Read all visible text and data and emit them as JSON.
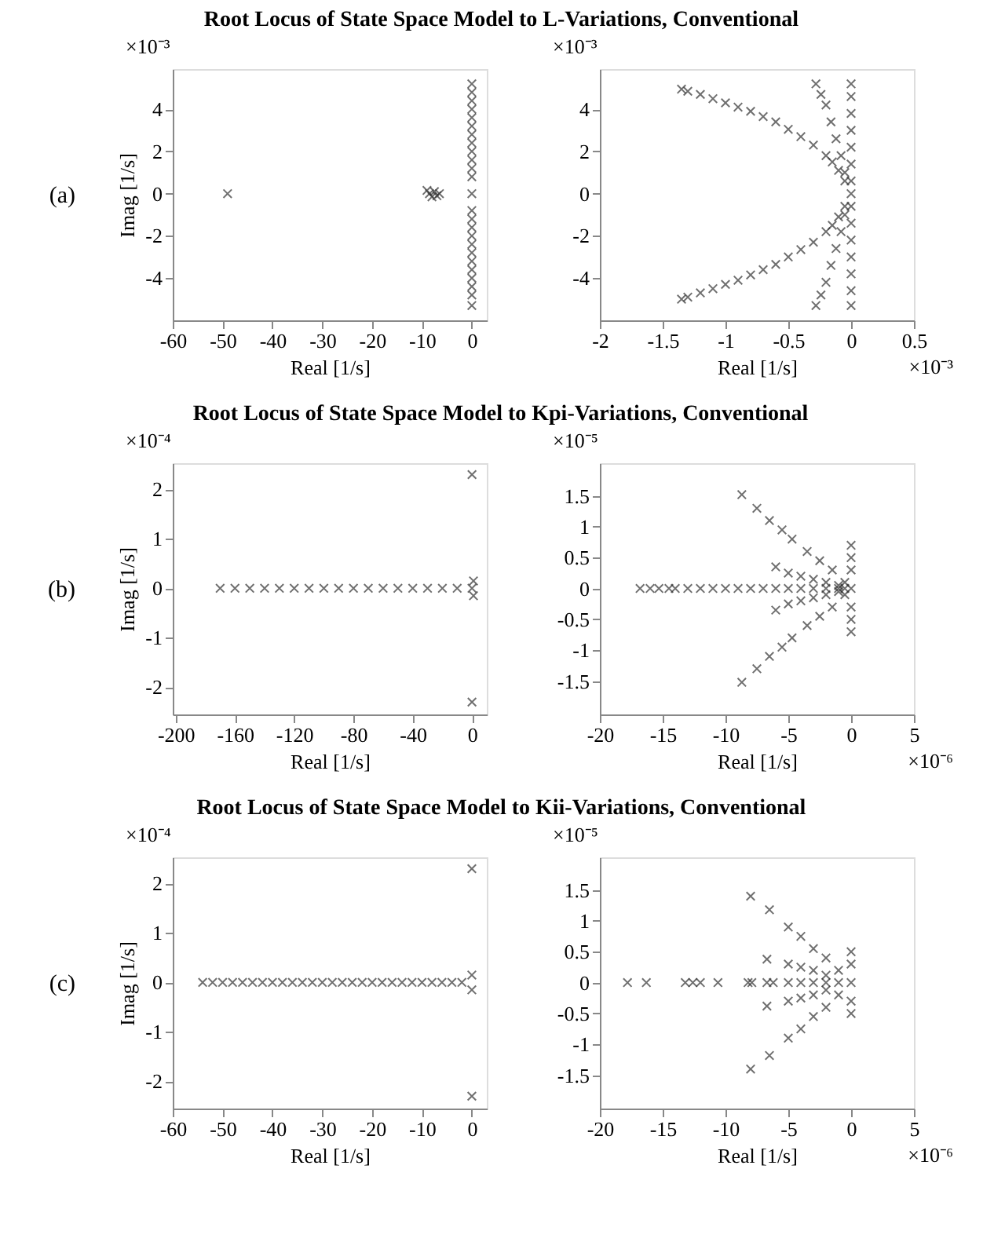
{
  "chart_data": [
    {
      "type": "scatter",
      "title": "Root Locus of State Space Model to L-Variations, Conventional",
      "xlabel": "Real [1/s]",
      "ylabel": "Imag [1/s]",
      "color": "#333333",
      "marker": "cross",
      "x": [
        -49,
        -9,
        -8.5,
        -8,
        -7.5,
        -7,
        -6.5,
        0,
        0,
        0,
        0,
        0,
        0,
        0,
        0,
        0,
        0,
        0,
        0,
        0,
        0,
        0,
        0,
        0,
        0,
        0,
        0,
        0,
        0,
        0,
        0,
        0
      ],
      "values": [
        0,
        0.15,
        0,
        -0.15,
        0.1,
        -0.1,
        0,
        5.2,
        4.8,
        4.4,
        4.0,
        3.6,
        3.2,
        2.8,
        2.4,
        2.0,
        1.6,
        1.2,
        0.8,
        0,
        -0.8,
        -1.2,
        -1.6,
        -2.0,
        -2.4,
        -2.8,
        -3.2,
        -3.6,
        -4.0,
        -4.4,
        -4.8,
        -5.3
      ],
      "xlim": [
        -60,
        3
      ],
      "ylim": [
        -6,
        5.9
      ],
      "xticks": [
        -60,
        -50,
        -40,
        -30,
        -20,
        -10,
        0
      ],
      "yticks": [
        -4,
        -2,
        0,
        2,
        4
      ],
      "annotations": [
        "×10⁻³",
        "(a)"
      ]
    },
    {
      "type": "scatter",
      "xlabel": "Real [1/s]",
      "color": "#333333",
      "marker": "cross",
      "x": [
        0,
        -0.05,
        -0.1,
        -0.15,
        -0.2,
        -0.3,
        -0.4,
        -0.5,
        -0.6,
        -0.7,
        -0.8,
        -0.9,
        -1.0,
        -1.1,
        -1.2,
        -1.3,
        -1.35,
        -0.05,
        -0.08,
        -0.12,
        -0.16,
        -0.2,
        -0.24,
        -0.28,
        0,
        0,
        0,
        0,
        0,
        0,
        0,
        -0.05,
        -0.1,
        -0.15,
        -0.2,
        -0.3,
        -0.4,
        -0.5,
        -0.6,
        -0.7,
        -0.8,
        -0.9,
        -1.0,
        -1.1,
        -1.2,
        -1.3,
        -1.35,
        -0.05,
        -0.08,
        -0.12,
        -0.16,
        -0.2,
        -0.24,
        -0.28,
        0,
        0,
        0,
        0,
        0,
        0,
        0
      ],
      "values": [
        0,
        0.6,
        1.1,
        1.5,
        1.8,
        2.3,
        2.7,
        3.05,
        3.4,
        3.65,
        3.9,
        4.1,
        4.3,
        4.5,
        4.7,
        4.85,
        4.95,
        1.0,
        1.8,
        2.6,
        3.4,
        4.2,
        4.7,
        5.2,
        0.6,
        1.4,
        2.2,
        3.0,
        3.8,
        4.6,
        5.2,
        -0.6,
        -1.1,
        -1.5,
        -1.8,
        -2.3,
        -2.65,
        -3.0,
        -3.35,
        -3.6,
        -3.85,
        -4.1,
        -4.3,
        -4.5,
        -4.7,
        -4.9,
        -5.0,
        -1.0,
        -1.8,
        -2.6,
        -3.4,
        -4.2,
        -4.8,
        -5.3,
        -0.6,
        -1.4,
        -2.2,
        -3.0,
        -3.8,
        -4.6,
        -5.3
      ],
      "xlim": [
        -2,
        0.5
      ],
      "ylim": [
        -6,
        5.9
      ],
      "xticks": [
        -2,
        -1.5,
        -1,
        -0.5,
        0,
        0.5
      ],
      "yticks": [
        -4,
        -2,
        0,
        2,
        4
      ],
      "annotations": [
        "×10⁻³",
        "×10⁻³"
      ]
    },
    {
      "type": "scatter",
      "title": "Root Locus of State Space Model to Kpi-Variations, Conventional",
      "xlabel": "Real [1/s]",
      "ylabel": "Imag [1/s]",
      "color": "#333333",
      "marker": "cross",
      "x": [
        -170,
        -160,
        -150,
        -140,
        -130,
        -120,
        -110,
        -100,
        -90,
        -80,
        -70,
        -60,
        -50,
        -40,
        -30,
        -20,
        -10,
        0,
        1,
        1,
        0,
        0
      ],
      "values": [
        0,
        0,
        0,
        0,
        0,
        0,
        0,
        0,
        0,
        0,
        0,
        0,
        0,
        0,
        0,
        0,
        0,
        0,
        0.15,
        -0.15,
        2.3,
        -2.3
      ],
      "xlim": [
        -202,
        10
      ],
      "ylim": [
        -2.55,
        2.53
      ],
      "xticks": [
        -200,
        -160,
        -120,
        -80,
        -40,
        0
      ],
      "yticks": [
        -2,
        -1,
        0,
        1,
        2
      ],
      "annotations": [
        "×10⁻⁴",
        "(b)"
      ]
    },
    {
      "type": "scatter",
      "xlabel": "Real [1/s]",
      "color": "#333333",
      "marker": "cross",
      "x": [
        -16.8,
        -16,
        -15.3,
        -14.5,
        -14,
        -13,
        -12,
        -11,
        -10,
        -9,
        -8,
        -7,
        -6,
        -5,
        -4,
        -3,
        -2,
        -1,
        -0.5,
        0,
        -8.7,
        -7.5,
        -6.5,
        -5.5,
        -4.7,
        -3.5,
        -2.5,
        -1.5,
        -0.5,
        -6,
        -5,
        -4,
        -3,
        -2,
        -1,
        0,
        0,
        0,
        -8.7,
        -7.5,
        -6.5,
        -5.5,
        -4.7,
        -3.5,
        -2.5,
        -1.5,
        -0.5,
        -6,
        -5,
        -4,
        -3,
        -2,
        -1,
        0,
        0,
        0
      ],
      "values": [
        0,
        0,
        0,
        0,
        0,
        0,
        0,
        0,
        0,
        0,
        0,
        0,
        0,
        0,
        0,
        0,
        0,
        0,
        0,
        0,
        1.52,
        1.3,
        1.1,
        0.95,
        0.8,
        0.6,
        0.45,
        0.3,
        0.1,
        0.35,
        0.25,
        0.2,
        0.15,
        0.1,
        0.05,
        0.7,
        0.5,
        0.3,
        -1.52,
        -1.3,
        -1.1,
        -0.95,
        -0.8,
        -0.6,
        -0.45,
        -0.3,
        -0.1,
        -0.35,
        -0.25,
        -0.2,
        -0.15,
        -0.1,
        -0.05,
        -0.7,
        -0.5,
        -0.3
      ],
      "xlim": [
        -20,
        5
      ],
      "ylim": [
        -2.04,
        2.03
      ],
      "xticks": [
        -20,
        -15,
        -10,
        -5,
        0,
        5
      ],
      "yticks": [
        -1.5,
        -1,
        -0.5,
        0,
        0.5,
        1,
        1.5
      ],
      "annotations": [
        "×10⁻⁵",
        "×10⁻⁶"
      ]
    },
    {
      "type": "scatter",
      "title": "Root Locus of State Space Model to Kii-Variations, Conventional",
      "xlabel": "Real [1/s]",
      "ylabel": "Imag [1/s]",
      "color": "#333333",
      "marker": "cross",
      "x": [
        -54,
        -52,
        -50,
        -48,
        -46,
        -44,
        -42,
        -40,
        -38,
        -36,
        -34,
        -32,
        -30,
        -28,
        -26,
        -24,
        -22,
        -20,
        -18,
        -16,
        -14,
        -12,
        -10,
        -8,
        -6,
        -4,
        -2,
        0,
        0,
        0,
        0
      ],
      "values": [
        0,
        0,
        0,
        0,
        0,
        0,
        0,
        0,
        0,
        0,
        0,
        0,
        0,
        0,
        0,
        0,
        0,
        0,
        0,
        0,
        0,
        0,
        0,
        0,
        0,
        0,
        0,
        0.15,
        -0.15,
        2.3,
        -2.3
      ],
      "xlim": [
        -60,
        3
      ],
      "ylim": [
        -2.55,
        2.53
      ],
      "xticks": [
        -60,
        -50,
        -40,
        -30,
        -20,
        -10,
        0
      ],
      "yticks": [
        -2,
        -1,
        0,
        1,
        2
      ],
      "annotations": [
        "×10⁻⁴",
        "(c)"
      ]
    },
    {
      "type": "scatter",
      "xlabel": "Real [1/s]",
      "color": "#333333",
      "marker": "cross",
      "x": [
        -17.8,
        -16.3,
        -13.2,
        -12.6,
        -12,
        -10.6,
        -8.2,
        -7.9,
        -6.7,
        -6.2,
        -5,
        -4,
        -3,
        -2,
        -1,
        0,
        -8,
        -6.5,
        -5,
        -4,
        -3,
        -2,
        -1,
        -6.7,
        -5,
        -4,
        -3,
        -2,
        0,
        0,
        -8,
        -6.5,
        -5,
        -4,
        -3,
        -2,
        -1,
        -6.7,
        -5,
        -4,
        -3,
        -2,
        0,
        0
      ],
      "values": [
        0,
        0,
        0,
        0,
        0,
        0,
        0,
        0,
        0,
        0,
        0,
        0,
        0,
        0,
        0,
        0,
        1.4,
        1.18,
        0.9,
        0.75,
        0.55,
        0.4,
        0.2,
        0.38,
        0.3,
        0.25,
        0.2,
        0.12,
        0.5,
        0.3,
        -1.4,
        -1.18,
        -0.9,
        -0.75,
        -0.55,
        -0.4,
        -0.2,
        -0.38,
        -0.3,
        -0.25,
        -0.2,
        -0.12,
        -0.5,
        -0.3
      ],
      "xlim": [
        -20,
        5
      ],
      "ylim": [
        -2.04,
        2.03
      ],
      "xticks": [
        -20,
        -15,
        -10,
        -5,
        0,
        5
      ],
      "yticks": [
        -1.5,
        -1,
        -0.5,
        0,
        0.5,
        1,
        1.5
      ],
      "annotations": [
        "×10⁻⁵",
        "×10⁻⁶"
      ]
    }
  ]
}
